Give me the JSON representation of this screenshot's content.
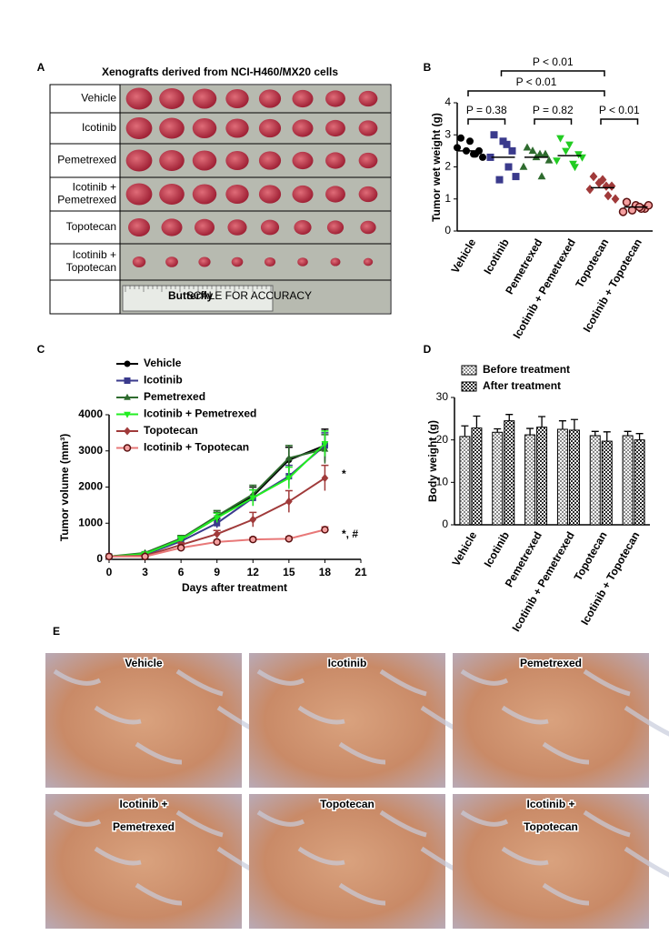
{
  "figure": {
    "panel_labels": [
      "A",
      "B",
      "C",
      "D",
      "E"
    ],
    "panel_a": {
      "title": "Xenografts derived from NCI-H460/MX20 cells",
      "rows": [
        [
          "Vehicle"
        ],
        [
          "Icotinib"
        ],
        [
          "Pemetrexed"
        ],
        [
          "Icotinib +",
          "Pemetrexed"
        ],
        [
          "Topotecan"
        ],
        [
          "Icotinib +",
          "Topotecan"
        ]
      ],
      "ruler_text": [
        "Butterfly",
        "SCALE FOR ACCURACY"
      ]
    },
    "panel_e": {
      "images": [
        [
          "Vehicle"
        ],
        [
          "Icotinib"
        ],
        [
          "Pemetrexed"
        ],
        [
          "Icotinib +",
          "Pemetrexed"
        ],
        [
          "Topotecan"
        ],
        [
          "Icotinib +",
          "Topotecan"
        ]
      ]
    }
  },
  "chart_data": [
    {
      "type": "dot",
      "y_label": "Tumor wet weight (g)",
      "categories": [
        "Vehicle",
        "Icotinib",
        "Pemetrexed",
        "Icotinib + Pemetrexed",
        "Topotecan",
        "Icotinib + Topotecan"
      ],
      "colors": [
        "#000000",
        "#3a3a8c",
        "#2e6b2e",
        "#22cc22",
        "#a03a3a",
        "#b03030"
      ],
      "markers": [
        "circle",
        "square",
        "triangle",
        "triangle-down",
        "diamond",
        "ring"
      ],
      "values": [
        [
          2.9,
          2.8,
          2.5,
          2.6,
          2.4,
          2.3,
          2.5,
          2.4
        ],
        [
          3.0,
          2.8,
          2.5,
          2.3,
          2.0,
          1.7,
          1.6,
          2.7
        ],
        [
          2.6,
          2.3,
          2.4,
          2.0,
          1.7,
          2.2,
          2.5,
          2.4
        ],
        [
          2.9,
          2.7,
          2.4,
          2.2,
          2.0,
          2.3,
          2.5,
          2.1
        ],
        [
          1.7,
          1.6,
          1.4,
          1.3,
          1.1,
          1.0,
          1.5,
          1.4
        ],
        [
          0.9,
          0.8,
          0.7,
          0.6,
          0.7,
          0.8,
          0.65,
          0.75
        ]
      ],
      "means": [
        2.5,
        2.3,
        2.3,
        2.35,
        1.35,
        0.75
      ],
      "ylim": [
        0,
        4
      ],
      "yticks": [
        0,
        1,
        2,
        3,
        4
      ],
      "annotations": [
        "P < 0.01",
        "P < 0.01",
        "P = 0.38",
        "P = 0.82",
        "P < 0.01"
      ]
    },
    {
      "type": "line",
      "y_label": "Tumor volume (mm³)",
      "x_label": "Days after treatment",
      "x": [
        0,
        3,
        6,
        9,
        12,
        15,
        18
      ],
      "xlim": [
        0,
        21
      ],
      "xticks": [
        0,
        3,
        6,
        9,
        12,
        15,
        18,
        21
      ],
      "ylim": [
        0,
        4000
      ],
      "yticks": [
        0,
        1000,
        2000,
        3000,
        4000
      ],
      "series": [
        {
          "name": "Vehicle",
          "color": "#000000",
          "marker": "circle",
          "values": [
            80,
            150,
            550,
            1150,
            1750,
            2750,
            3150
          ],
          "errors": [
            10,
            30,
            80,
            150,
            250,
            350,
            450
          ]
        },
        {
          "name": "Icotinib",
          "color": "#3a3a8c",
          "marker": "square",
          "values": [
            80,
            130,
            500,
            1000,
            1700,
            2300,
            3150
          ],
          "errors": [
            10,
            30,
            80,
            130,
            220,
            300,
            350
          ]
        },
        {
          "name": "Pemetrexed",
          "color": "#2e6b2e",
          "marker": "triangle",
          "values": [
            80,
            180,
            580,
            1200,
            1800,
            2800,
            3050
          ],
          "errors": [
            10,
            30,
            80,
            150,
            250,
            350,
            400
          ]
        },
        {
          "name": "Icotinib + Pemetrexed",
          "color": "#22ee22",
          "marker": "triangle-down",
          "values": [
            80,
            150,
            550,
            1150,
            1700,
            2250,
            3200
          ],
          "errors": [
            10,
            30,
            80,
            130,
            220,
            300,
            350
          ]
        },
        {
          "name": "Topotecan",
          "color": "#a03a3a",
          "marker": "diamond",
          "values": [
            80,
            100,
            400,
            700,
            1100,
            1600,
            2250
          ],
          "errors": [
            10,
            30,
            60,
            100,
            200,
            300,
            350
          ]
        },
        {
          "name": "Icotinib + Topotecan",
          "color": "#e87878",
          "marker": "ring",
          "values": [
            80,
            80,
            320,
            480,
            550,
            570,
            820
          ],
          "errors": [
            10,
            20,
            40,
            50,
            60,
            60,
            80
          ]
        }
      ],
      "annotations": [
        "*",
        "*, #"
      ]
    },
    {
      "type": "bar",
      "y_label": "Body weight (g)",
      "categories": [
        "Vehicle",
        "Icotinib",
        "Pemetrexed",
        "Icotinib + Pemetrexed",
        "Topotecan",
        "Icotinib + Topotecan"
      ],
      "ylim": [
        0,
        30
      ],
      "yticks": [
        0,
        10,
        20,
        30
      ],
      "series": [
        {
          "name": "Before treatment",
          "color": "#8a8a8a",
          "values": [
            20.8,
            21.8,
            21.2,
            22.5,
            21.0,
            21.0
          ],
          "errors": [
            2.5,
            0.8,
            1.5,
            2.0,
            1.0,
            1.0
          ]
        },
        {
          "name": "After treatment",
          "color": "#2a2a2a",
          "values": [
            22.8,
            24.5,
            23.0,
            22.3,
            19.7,
            20.0
          ],
          "errors": [
            2.8,
            1.5,
            2.5,
            2.5,
            2.2,
            1.5
          ]
        }
      ]
    }
  ]
}
